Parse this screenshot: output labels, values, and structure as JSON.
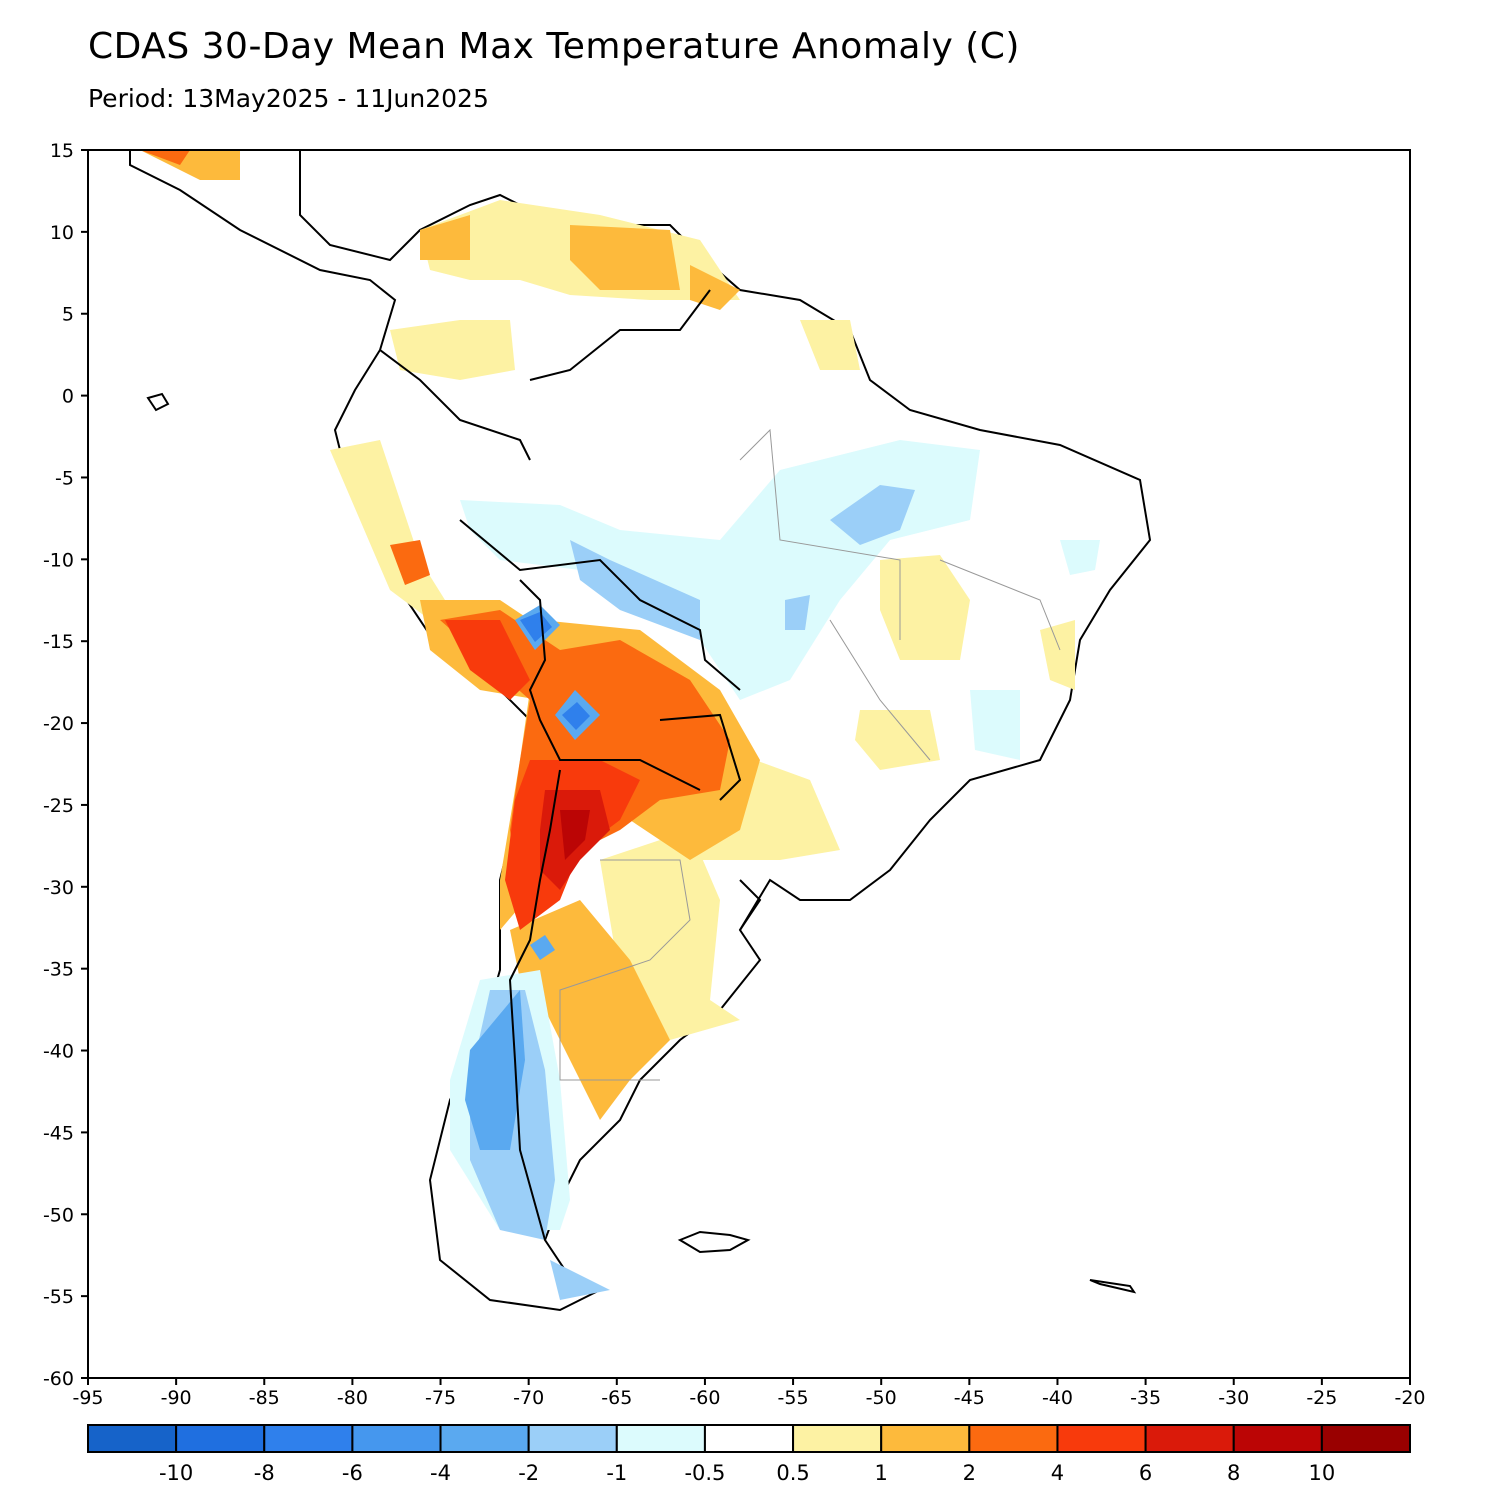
{
  "header": {
    "title": "CDAS 30-Day Mean Max Temperature Anomaly (C)",
    "period": "Period: 13May2025 - 11Jun2025"
  },
  "map": {
    "region": "South America",
    "lon_range": [
      -95,
      -20
    ],
    "lat_range": [
      -60,
      15
    ],
    "x_ticks": [
      "-95",
      "-90",
      "-85",
      "-80",
      "-75",
      "-70",
      "-65",
      "-60",
      "-55",
      "-50",
      "-45",
      "-40",
      "-35",
      "-30",
      "-25",
      "-20"
    ],
    "y_ticks": [
      "15",
      "10",
      "5",
      "0",
      "-5",
      "-10",
      "-15",
      "-20",
      "-25",
      "-30",
      "-35",
      "-40",
      "-45",
      "-50",
      "-55",
      "-60"
    ]
  },
  "colorbar": {
    "colors": [
      "#1663c9",
      "#1f6fe0",
      "#2f80ec",
      "#4597ee",
      "#5aa9f0",
      "#9bcff8",
      "#dcfbfd",
      "#ffffff",
      "#fdf2a3",
      "#fdba3c",
      "#fb6a10",
      "#f83a0c",
      "#da1a0a",
      "#bb0505",
      "#990000"
    ],
    "labels": [
      "-10",
      "-8",
      "-6",
      "-4",
      "-2",
      "-1",
      "-0.5",
      "0.5",
      "1",
      "2",
      "4",
      "6",
      "8",
      "10"
    ]
  }
}
